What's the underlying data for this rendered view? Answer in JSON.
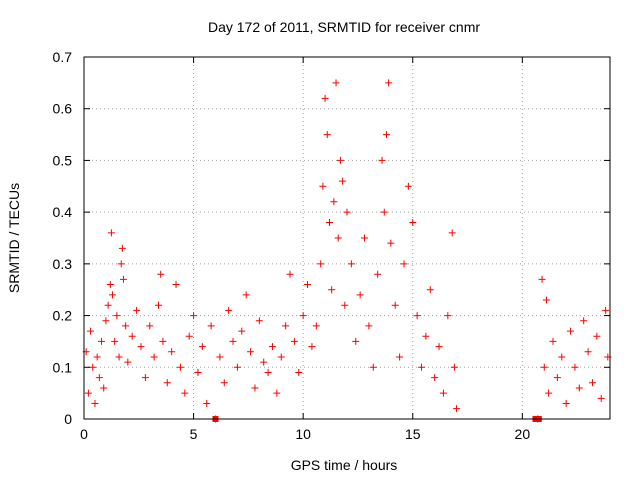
{
  "chart_data": {
    "type": "scatter",
    "title": "Day 172 of 2011, SRMTID for receiver cnmr",
    "xlabel": "GPS time / hours",
    "ylabel": "SRMTID / TECUs",
    "xlim": [
      0,
      24
    ],
    "ylim": [
      0,
      0.7
    ],
    "xticks": [
      "0",
      "5",
      "10",
      "15",
      "20"
    ],
    "yticks": [
      "0",
      "0.1",
      "0.2",
      "0.3",
      "0.4",
      "0.5",
      "0.6",
      "0.7"
    ],
    "grid": true,
    "marker": "+",
    "color": "#ff0000",
    "series": [
      {
        "name": "SRMTID",
        "points": [
          [
            0.1,
            0.13
          ],
          [
            0.2,
            0.05
          ],
          [
            0.3,
            0.17
          ],
          [
            0.4,
            0.1
          ],
          [
            0.5,
            0.03
          ],
          [
            0.6,
            0.12
          ],
          [
            0.7,
            0.08
          ],
          [
            0.8,
            0.15
          ],
          [
            0.9,
            0.06
          ],
          [
            1.0,
            0.19
          ],
          [
            1.1,
            0.22
          ],
          [
            1.2,
            0.26
          ],
          [
            1.25,
            0.36
          ],
          [
            1.3,
            0.24
          ],
          [
            1.4,
            0.15
          ],
          [
            1.5,
            0.2
          ],
          [
            1.6,
            0.12
          ],
          [
            1.7,
            0.3
          ],
          [
            1.75,
            0.33
          ],
          [
            1.8,
            0.27
          ],
          [
            1.9,
            0.18
          ],
          [
            2.0,
            0.11
          ],
          [
            2.2,
            0.16
          ],
          [
            2.4,
            0.21
          ],
          [
            2.6,
            0.14
          ],
          [
            2.8,
            0.08
          ],
          [
            3.0,
            0.18
          ],
          [
            3.2,
            0.12
          ],
          [
            3.4,
            0.22
          ],
          [
            3.5,
            0.28
          ],
          [
            3.6,
            0.15
          ],
          [
            3.8,
            0.07
          ],
          [
            4.0,
            0.13
          ],
          [
            4.2,
            0.26
          ],
          [
            4.4,
            0.1
          ],
          [
            4.6,
            0.05
          ],
          [
            4.8,
            0.16
          ],
          [
            5.0,
            0.2
          ],
          [
            5.2,
            0.09
          ],
          [
            5.4,
            0.14
          ],
          [
            5.6,
            0.03
          ],
          [
            5.8,
            0.18
          ],
          [
            6.0,
            0.0
          ],
          [
            6.2,
            0.12
          ],
          [
            6.4,
            0.07
          ],
          [
            6.6,
            0.21
          ],
          [
            6.8,
            0.15
          ],
          [
            7.0,
            0.1
          ],
          [
            7.2,
            0.17
          ],
          [
            7.4,
            0.24
          ],
          [
            7.6,
            0.13
          ],
          [
            7.8,
            0.06
          ],
          [
            8.0,
            0.19
          ],
          [
            8.2,
            0.11
          ],
          [
            8.4,
            0.09
          ],
          [
            8.6,
            0.14
          ],
          [
            8.8,
            0.05
          ],
          [
            9.0,
            0.12
          ],
          [
            9.2,
            0.18
          ],
          [
            9.4,
            0.28
          ],
          [
            9.6,
            0.15
          ],
          [
            9.8,
            0.09
          ],
          [
            10.0,
            0.2
          ],
          [
            10.2,
            0.26
          ],
          [
            10.4,
            0.14
          ],
          [
            10.6,
            0.18
          ],
          [
            10.8,
            0.3
          ],
          [
            10.9,
            0.45
          ],
          [
            11.0,
            0.62
          ],
          [
            11.1,
            0.55
          ],
          [
            11.2,
            0.38
          ],
          [
            11.3,
            0.25
          ],
          [
            11.4,
            0.42
          ],
          [
            11.5,
            0.65
          ],
          [
            11.6,
            0.35
          ],
          [
            11.7,
            0.5
          ],
          [
            11.8,
            0.46
          ],
          [
            11.9,
            0.22
          ],
          [
            12.0,
            0.4
          ],
          [
            12.2,
            0.3
          ],
          [
            12.4,
            0.15
          ],
          [
            12.6,
            0.24
          ],
          [
            12.8,
            0.35
          ],
          [
            13.0,
            0.18
          ],
          [
            13.2,
            0.1
          ],
          [
            13.4,
            0.28
          ],
          [
            13.6,
            0.5
          ],
          [
            13.7,
            0.4
          ],
          [
            13.8,
            0.55
          ],
          [
            13.9,
            0.65
          ],
          [
            14.0,
            0.34
          ],
          [
            14.2,
            0.22
          ],
          [
            14.4,
            0.12
          ],
          [
            14.6,
            0.3
          ],
          [
            14.8,
            0.45
          ],
          [
            15.0,
            0.38
          ],
          [
            15.2,
            0.2
          ],
          [
            15.4,
            0.1
          ],
          [
            15.6,
            0.16
          ],
          [
            15.8,
            0.25
          ],
          [
            16.0,
            0.08
          ],
          [
            16.2,
            0.14
          ],
          [
            16.4,
            0.05
          ],
          [
            16.6,
            0.2
          ],
          [
            16.8,
            0.36
          ],
          [
            16.9,
            0.1
          ],
          [
            17.0,
            0.02
          ],
          [
            20.7,
            0.0
          ],
          [
            20.9,
            0.27
          ],
          [
            21.0,
            0.1
          ],
          [
            21.1,
            0.23
          ],
          [
            21.2,
            0.05
          ],
          [
            21.4,
            0.15
          ],
          [
            21.6,
            0.08
          ],
          [
            21.8,
            0.12
          ],
          [
            22.0,
            0.03
          ],
          [
            22.2,
            0.17
          ],
          [
            22.4,
            0.1
          ],
          [
            22.6,
            0.06
          ],
          [
            22.8,
            0.19
          ],
          [
            23.0,
            0.13
          ],
          [
            23.2,
            0.07
          ],
          [
            23.4,
            0.16
          ],
          [
            23.6,
            0.04
          ],
          [
            23.8,
            0.21
          ],
          [
            23.9,
            0.12
          ]
        ]
      }
    ],
    "square_markers": [
      [
        6.0,
        0.0
      ],
      [
        20.6,
        0.0
      ],
      [
        20.75,
        0.0
      ]
    ]
  }
}
